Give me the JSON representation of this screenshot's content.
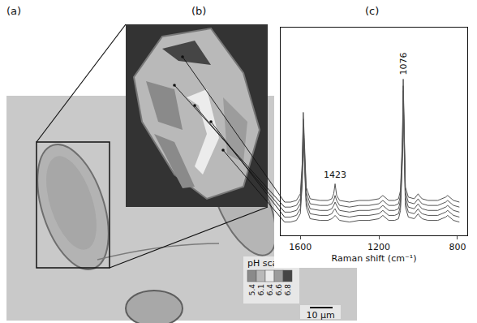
{
  "panel_labels": [
    "(a)",
    "(b)",
    "(c)"
  ],
  "image": {
    "scale_bar": "10 μm"
  },
  "ph_scale": {
    "title": "pH scale",
    "labels": [
      "5.4",
      "6.1",
      "6.4",
      "6.6",
      "6.8"
    ],
    "colors": [
      "#8a8a8a",
      "#b9b9b9",
      "#ececec",
      "#9c9c9c",
      "#454545"
    ]
  },
  "chart_data": {
    "type": "line",
    "xlabel": "Raman shift (cm⁻¹)",
    "x": [
      1680,
      1650,
      1620,
      1600,
      1590,
      1585,
      1580,
      1570,
      1550,
      1500,
      1460,
      1440,
      1430,
      1423,
      1415,
      1400,
      1350,
      1300,
      1250,
      1200,
      1180,
      1170,
      1150,
      1120,
      1100,
      1090,
      1080,
      1076,
      1072,
      1065,
      1050,
      1020,
      1000,
      995,
      980,
      950,
      900,
      860,
      850,
      840,
      820,
      790
    ],
    "series": [
      {
        "color": "#555555",
        "values": [
          20,
          20,
          21,
          25,
          44,
          74,
          59,
          29,
          22,
          21,
          21,
          22,
          25,
          31,
          24,
          21,
          20,
          21,
          21,
          22,
          24,
          23,
          21,
          21,
          22,
          27,
          59,
          94,
          64,
          29,
          23,
          22,
          25,
          24,
          22,
          21,
          21,
          23,
          24,
          23,
          21,
          20
        ]
      },
      {
        "color": "#555555",
        "values": [
          17,
          17,
          18,
          22,
          40,
          70,
          55,
          26,
          19,
          18,
          18,
          19,
          21,
          24,
          21,
          18,
          17,
          18,
          18,
          19,
          21,
          20,
          18,
          18,
          19,
          24,
          55,
          90,
          60,
          26,
          20,
          19,
          22,
          21,
          19,
          18,
          18,
          20,
          21,
          20,
          18,
          17
        ]
      },
      {
        "color": "#555555",
        "values": [
          14,
          14,
          15,
          19,
          37,
          66,
          52,
          23,
          16,
          15,
          15,
          16,
          18,
          20,
          18,
          15,
          14,
          15,
          15,
          16,
          18,
          17,
          15,
          15,
          16,
          21,
          52,
          87,
          57,
          23,
          17,
          16,
          19,
          18,
          16,
          15,
          15,
          17,
          18,
          17,
          15,
          14
        ]
      },
      {
        "color": "#555555",
        "values": [
          11,
          11,
          12,
          16,
          34,
          63,
          49,
          20,
          13,
          12,
          12,
          13,
          15,
          16,
          14,
          12,
          11,
          12,
          12,
          13,
          15,
          14,
          12,
          12,
          13,
          18,
          49,
          84,
          54,
          20,
          14,
          13,
          16,
          15,
          13,
          12,
          12,
          14,
          15,
          14,
          12,
          11
        ]
      },
      {
        "color": "#555555",
        "values": [
          8,
          8,
          9,
          13,
          31,
          60,
          46,
          17,
          10,
          9,
          9,
          10,
          11,
          12,
          11,
          9,
          8,
          9,
          9,
          10,
          12,
          11,
          9,
          9,
          10,
          15,
          46,
          81,
          51,
          17,
          11,
          10,
          13,
          12,
          10,
          9,
          9,
          11,
          12,
          11,
          9,
          8
        ]
      }
    ],
    "xlim": [
      1700,
      750
    ],
    "xticks": [
      1600,
      1200,
      800
    ],
    "ylim": [
      0,
      125
    ],
    "tick_labels": "x",
    "annotations": [
      {
        "text": "1423",
        "x": 1423
      },
      {
        "text": "1076",
        "x": 1076
      }
    ]
  }
}
